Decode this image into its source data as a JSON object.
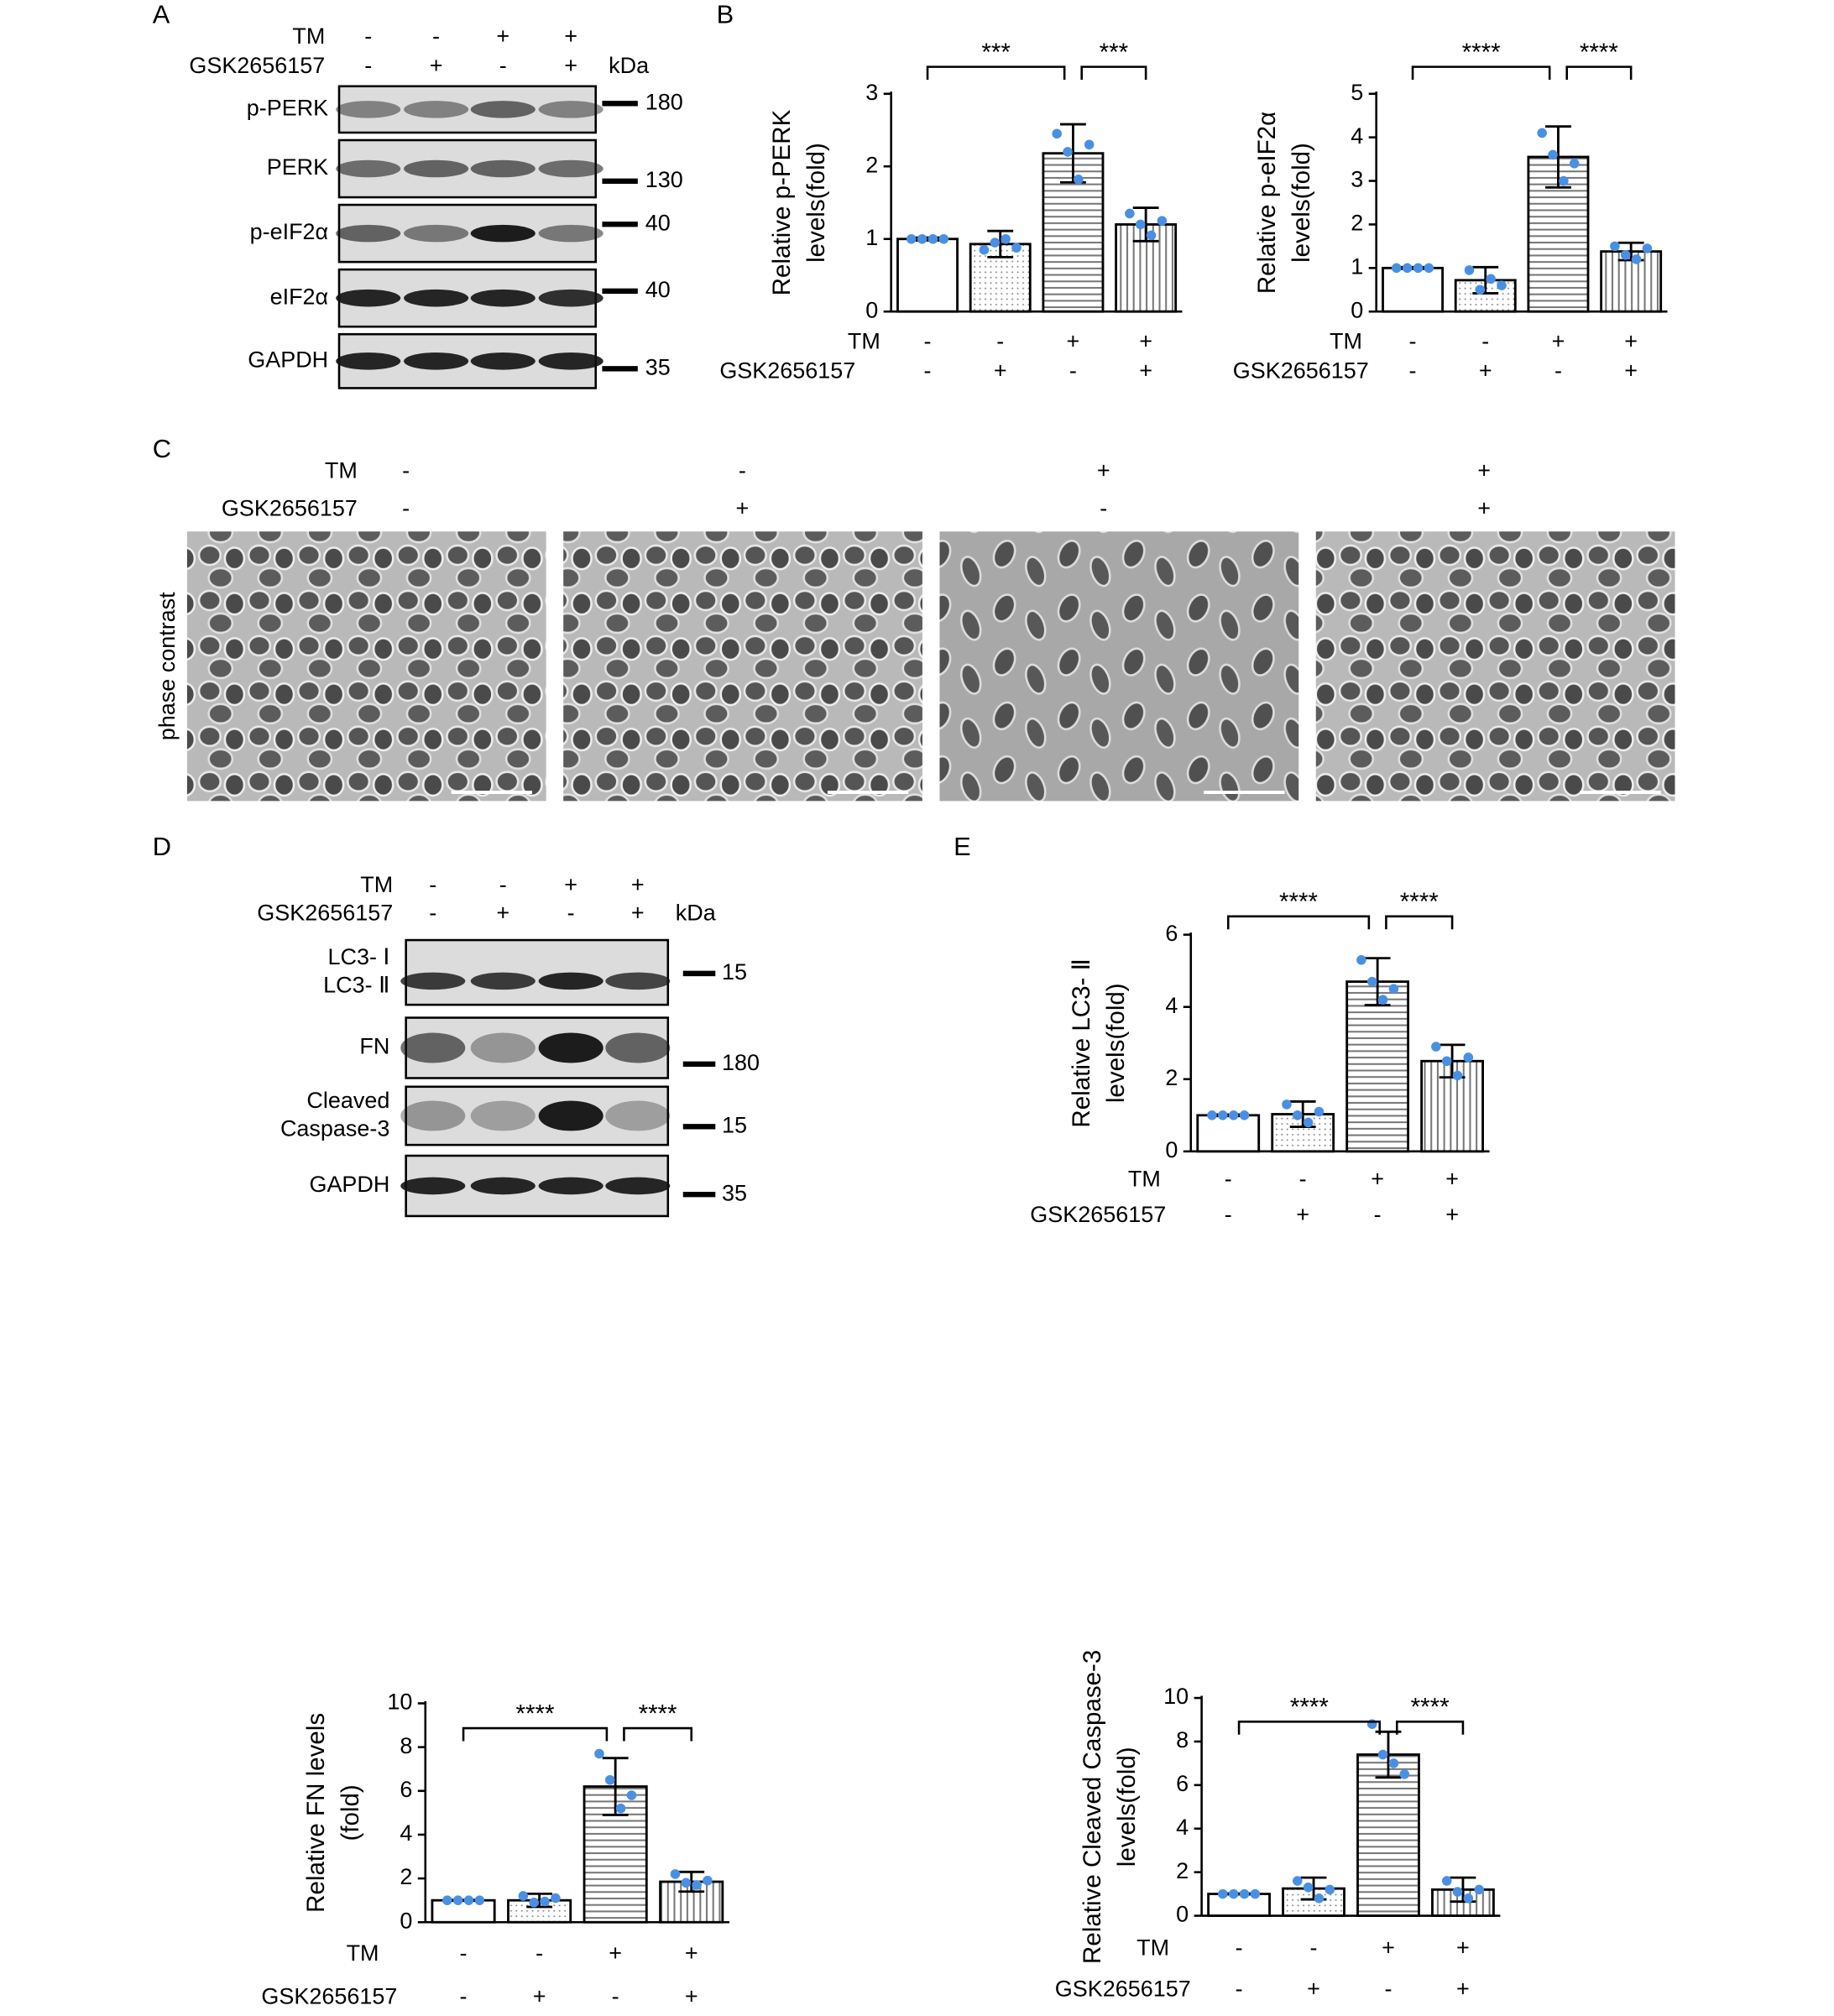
{
  "panel_labels": [
    "A",
    "B",
    "C",
    "D",
    "E"
  ],
  "blot_a": {
    "conditions": [
      {
        "name": "TM",
        "signs": [
          "-",
          "-",
          "+",
          "+"
        ]
      },
      {
        "name": "GSK2656157",
        "signs": [
          "-",
          "+",
          "-",
          "+"
        ]
      }
    ],
    "unit": "kDa",
    "rows": [
      {
        "label": "p-PERK",
        "marker": 180
      },
      {
        "label": "PERK",
        "marker": 130
      },
      {
        "label": "p-eIF2α",
        "marker": 40
      },
      {
        "label": "eIF2α",
        "marker": 40
      },
      {
        "label": "GAPDH",
        "marker": 35
      }
    ]
  },
  "panel_c": {
    "conditions": [
      {
        "name": "TM",
        "signs": [
          "-",
          "-",
          "+",
          "+"
        ]
      },
      {
        "name": "GSK2656157",
        "signs": [
          "-",
          "+",
          "-",
          "+"
        ]
      }
    ],
    "row_label": "phase contrast"
  },
  "blot_d": {
    "conditions": [
      {
        "name": "TM",
        "signs": [
          "-",
          "-",
          "+",
          "+"
        ]
      },
      {
        "name": "GSK2656157",
        "signs": [
          "-",
          "+",
          "-",
          "+"
        ]
      }
    ],
    "unit": "kDa",
    "rows": [
      {
        "label": [
          "LC3- Ⅰ",
          "LC3- Ⅱ"
        ],
        "marker": 15
      },
      {
        "label": [
          "FN"
        ],
        "marker": 180
      },
      {
        "label": [
          "Cleaved",
          "Caspase-3"
        ],
        "marker": 15
      },
      {
        "label": [
          "GAPDH"
        ],
        "marker": 35
      }
    ]
  },
  "chart_data": [
    {
      "type": "bar",
      "ylabel": [
        "Relative p-PERK",
        "levels(fold)"
      ],
      "conditions": [
        {
          "name": "TM",
          "signs": [
            "-",
            "-",
            "+",
            "+"
          ]
        },
        {
          "name": "GSK2656157",
          "signs": [
            "-",
            "+",
            "-",
            "+"
          ]
        }
      ],
      "values": [
        1,
        0.93,
        2.18,
        1.2
      ],
      "errors": [
        0.02,
        0.18,
        0.4,
        0.23
      ],
      "points": [
        [
          1,
          1,
          1,
          1
        ],
        [
          0.85,
          0.95,
          1.0,
          0.88
        ],
        [
          2.45,
          2.2,
          1.82,
          2.3
        ],
        [
          1.35,
          1.2,
          1.05,
          1.25
        ]
      ],
      "ylim": [
        0,
        3
      ],
      "yticks": [
        0,
        1,
        2,
        3
      ],
      "significance": [
        {
          "groups": [
            0,
            2
          ],
          "label": "***"
        },
        {
          "groups": [
            2,
            3
          ],
          "label": "***"
        }
      ],
      "bar_patterns": [
        "none",
        "dots",
        "hlines",
        "vlines"
      ],
      "point_color": "#4a90e2"
    },
    {
      "type": "bar",
      "ylabel": [
        "Relative p-eIF2α",
        "levels(fold)"
      ],
      "conditions": [
        {
          "name": "TM",
          "signs": [
            "-",
            "-",
            "+",
            "+"
          ]
        },
        {
          "name": "GSK2656157",
          "signs": [
            "-",
            "+",
            "-",
            "+"
          ]
        }
      ],
      "values": [
        1,
        0.72,
        3.55,
        1.38
      ],
      "errors": [
        0.02,
        0.3,
        0.7,
        0.2
      ],
      "points": [
        [
          1,
          1,
          1,
          1
        ],
        [
          0.95,
          0.5,
          0.75,
          0.6
        ],
        [
          4.1,
          3.6,
          3.0,
          3.4
        ],
        [
          1.5,
          1.3,
          1.2,
          1.45
        ]
      ],
      "ylim": [
        0,
        5
      ],
      "yticks": [
        0,
        1,
        2,
        3,
        4,
        5
      ],
      "significance": [
        {
          "groups": [
            0,
            2
          ],
          "label": "****"
        },
        {
          "groups": [
            2,
            3
          ],
          "label": "****"
        }
      ],
      "bar_patterns": [
        "none",
        "dots",
        "hlines",
        "vlines"
      ],
      "point_color": "#4a90e2"
    },
    {
      "type": "bar",
      "ylabel": [
        "Relative  LC3- Ⅱ",
        "levels(fold)"
      ],
      "conditions": [
        {
          "name": "TM",
          "signs": [
            "-",
            "-",
            "+",
            "+"
          ]
        },
        {
          "name": "GSK2656157",
          "signs": [
            "-",
            "+",
            "-",
            "+"
          ]
        }
      ],
      "values": [
        1,
        1.03,
        4.7,
        2.5
      ],
      "errors": [
        0.02,
        0.35,
        0.65,
        0.45
      ],
      "points": [
        [
          1,
          1,
          1,
          1
        ],
        [
          1.3,
          1.0,
          0.8,
          1.1
        ],
        [
          5.3,
          4.7,
          4.2,
          4.5
        ],
        [
          2.9,
          2.5,
          2.1,
          2.6
        ]
      ],
      "ylim": [
        0,
        6
      ],
      "yticks": [
        0,
        2,
        4,
        6
      ],
      "significance": [
        {
          "groups": [
            0,
            2
          ],
          "label": "****"
        },
        {
          "groups": [
            2,
            3
          ],
          "label": "****"
        }
      ],
      "bar_patterns": [
        "none",
        "dots",
        "hlines",
        "vlines"
      ],
      "point_color": "#4a90e2"
    },
    {
      "type": "bar",
      "ylabel": [
        "Relative FN levels",
        "(fold)"
      ],
      "conditions": [
        {
          "name": "TM",
          "signs": [
            "-",
            "-",
            "+",
            "+"
          ]
        },
        {
          "name": "GSK2656157",
          "signs": [
            "-",
            "+",
            "-",
            "+"
          ]
        }
      ],
      "values": [
        1,
        1,
        6.2,
        1.85
      ],
      "errors": [
        0.02,
        0.3,
        1.3,
        0.45
      ],
      "points": [
        [
          1,
          1,
          1,
          1
        ],
        [
          1.2,
          0.9,
          0.95,
          1.1
        ],
        [
          7.7,
          6.5,
          5.2,
          5.8
        ],
        [
          2.2,
          1.8,
          1.7,
          1.9
        ]
      ],
      "ylim": [
        0,
        10
      ],
      "yticks": [
        0,
        2,
        4,
        6,
        8,
        10
      ],
      "significance": [
        {
          "groups": [
            0,
            2
          ],
          "label": "****"
        },
        {
          "groups": [
            2,
            3
          ],
          "label": "****"
        }
      ],
      "bar_patterns": [
        "none",
        "dots",
        "hlines",
        "vlines"
      ],
      "point_color": "#4a90e2"
    },
    {
      "type": "bar",
      "ylabel": [
        "Relative Cleaved Caspase-3",
        "levels(fold)"
      ],
      "conditions": [
        {
          "name": "TM",
          "signs": [
            "-",
            "-",
            "+",
            "+"
          ]
        },
        {
          "name": "GSK2656157",
          "signs": [
            "-",
            "+",
            "-",
            "+"
          ]
        }
      ],
      "values": [
        1,
        1.25,
        7.4,
        1.2
      ],
      "errors": [
        0.02,
        0.5,
        1.05,
        0.55
      ],
      "points": [
        [
          1,
          1,
          1,
          1
        ],
        [
          1.6,
          1.3,
          0.8,
          1.2
        ],
        [
          8.8,
          7.4,
          7.0,
          6.5
        ],
        [
          1.6,
          1.1,
          0.8,
          1.2
        ]
      ],
      "ylim": [
        0,
        10
      ],
      "yticks": [
        0,
        2,
        4,
        6,
        8,
        10
      ],
      "significance": [
        {
          "groups": [
            0,
            2
          ],
          "label": "****"
        },
        {
          "groups": [
            2,
            3
          ],
          "label": "****"
        }
      ],
      "bar_patterns": [
        "none",
        "dots",
        "hlines",
        "vlines"
      ],
      "point_color": "#4a90e2"
    }
  ]
}
